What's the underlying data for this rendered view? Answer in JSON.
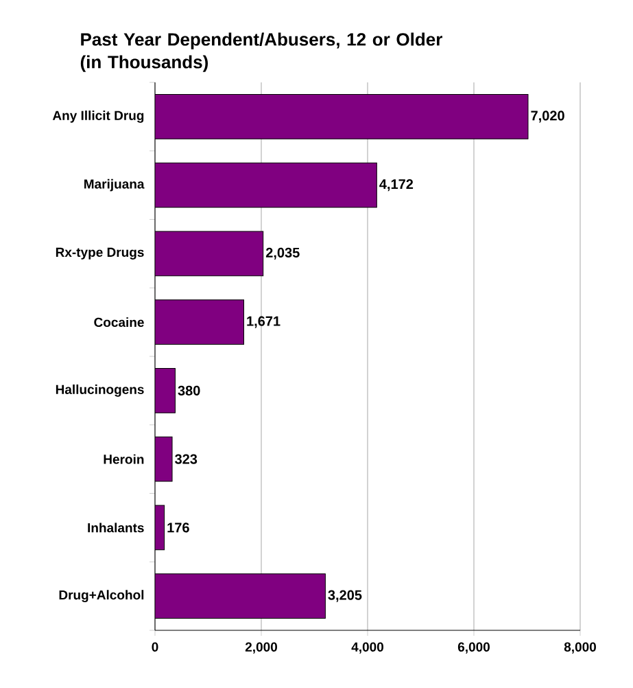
{
  "chart_data": {
    "type": "bar",
    "orientation": "horizontal",
    "title": "Past Year Dependent/Abusers, 12 or Older (in Thousands)",
    "categories": [
      "Any Illicit Drug",
      "Marijuana",
      "Rx-type Drugs",
      "Cocaine",
      "Hallucinogens",
      "Heroin",
      "Inhalants",
      "Drug+Alcohol"
    ],
    "values": [
      7020,
      4172,
      2035,
      1671,
      380,
      323,
      176,
      3205
    ],
    "value_labels": [
      "7,020",
      "4,172",
      "2,035",
      "1,671",
      "380",
      "323",
      "176",
      "3,205"
    ],
    "color": "#800080",
    "xlim": [
      0,
      8000
    ],
    "xticks": [
      0,
      {
        "value": 2000,
        "label": "2,000"
      },
      {
        "value": 4000,
        "label": "4,000"
      },
      {
        "value": 6000,
        "label": "6,000"
      },
      {
        "value": 8000,
        "label": "8,000"
      }
    ],
    "grid": "x"
  }
}
